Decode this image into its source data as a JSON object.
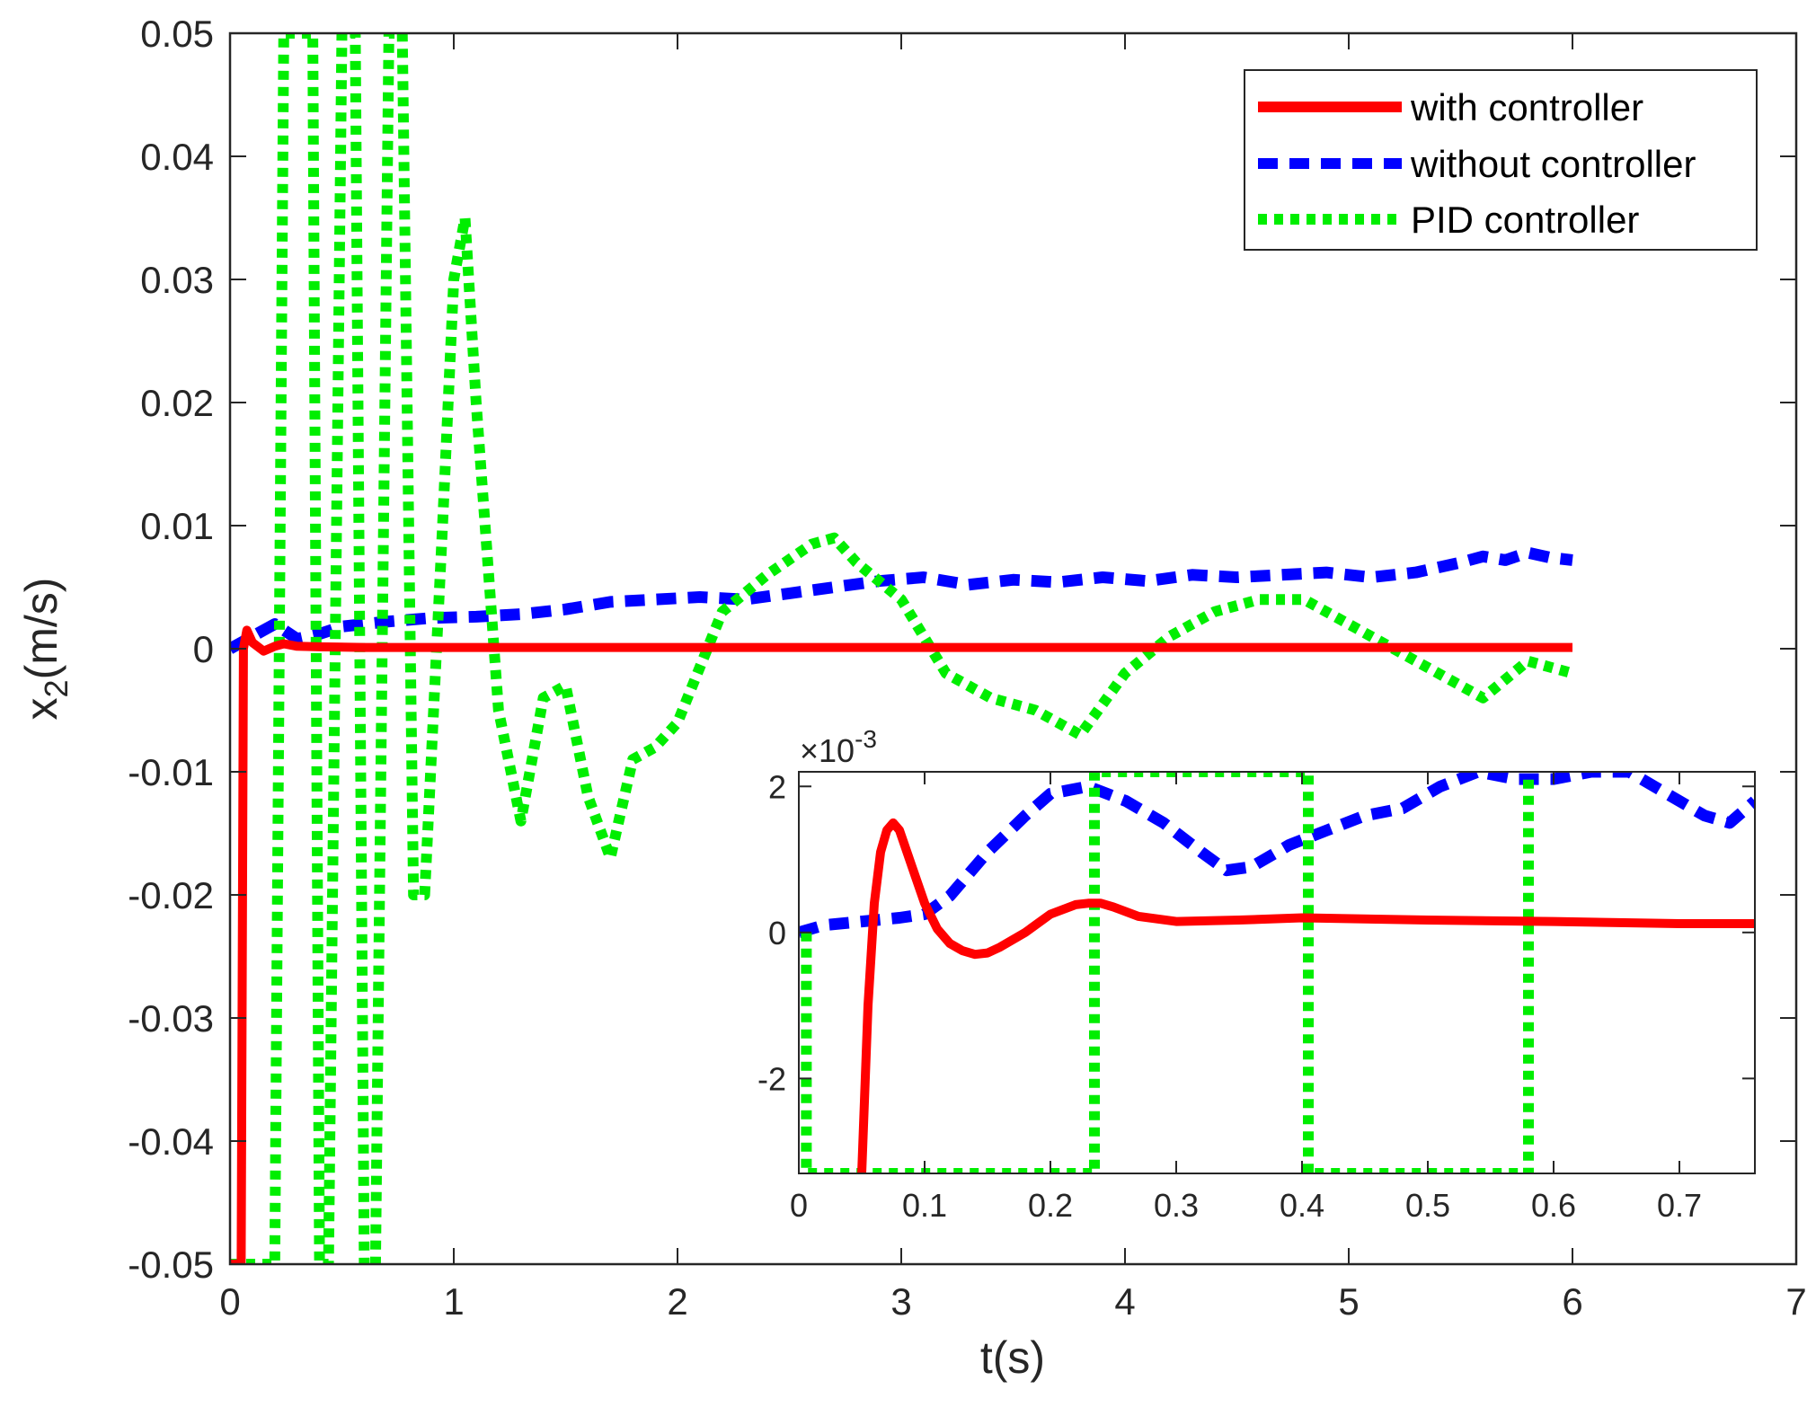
{
  "chart_data": [
    {
      "type": "line",
      "id": "main",
      "xlabel": "t(s)",
      "ylabel_base": "x",
      "ylabel_sub": "2",
      "ylabel_unit": "(m/s)",
      "xlim": [
        0,
        7
      ],
      "ylim": [
        -0.05,
        0.05
      ],
      "xticks": [
        0,
        1,
        2,
        3,
        4,
        5,
        6,
        7
      ],
      "xtick_labels": [
        "0",
        "1",
        "2",
        "3",
        "4",
        "5",
        "6",
        "7"
      ],
      "yticks": [
        -0.05,
        -0.04,
        -0.03,
        -0.02,
        -0.01,
        0,
        0.01,
        0.02,
        0.03,
        0.04,
        0.05
      ],
      "ytick_labels": [
        "-0.05",
        "-0.04",
        "-0.03",
        "-0.02",
        "-0.01",
        "0",
        "0.01",
        "0.02",
        "0.03",
        "0.04",
        "0.05"
      ],
      "legend": {
        "placement": "top-right",
        "entries": [
          "with controller",
          "without controller",
          "PID controller"
        ]
      },
      "series": [
        {
          "name": "with controller",
          "color": "#ff0000",
          "style": "solid",
          "x": [
            0,
            0.02,
            0.05,
            0.06,
            0.075,
            0.1,
            0.15,
            0.2,
            0.24,
            0.3,
            0.4,
            0.6,
            1,
            2,
            3,
            4,
            5,
            6
          ],
          "y": [
            -0.05,
            -0.05,
            -0.05,
            0.0,
            0.0015,
            0.0005,
            -0.0002,
            0.0002,
            0.0004,
            0.0002,
            0.00015,
            0.0001,
            0.0001,
            0.0001,
            0.0001,
            0.0001,
            0.0001,
            0.0001
          ]
        },
        {
          "name": "without controller",
          "color": "#0000ff",
          "style": "dash",
          "x": [
            0,
            0.1,
            0.2,
            0.3,
            0.4,
            0.5,
            0.7,
            0.9,
            1.1,
            1.3,
            1.5,
            1.7,
            1.9,
            2.1,
            2.3,
            2.5,
            2.7,
            2.9,
            3.1,
            3.3,
            3.5,
            3.7,
            3.9,
            4.1,
            4.3,
            4.5,
            4.7,
            4.9,
            5.1,
            5.3,
            5.5,
            5.6,
            5.7,
            5.8,
            5.9,
            6.0
          ],
          "y": [
            0.0,
            0.001,
            0.002,
            0.0008,
            0.0012,
            0.0018,
            0.0022,
            0.0025,
            0.0026,
            0.0028,
            0.0032,
            0.0038,
            0.004,
            0.0042,
            0.004,
            0.0045,
            0.005,
            0.0055,
            0.0058,
            0.0052,
            0.0056,
            0.0054,
            0.0058,
            0.0055,
            0.006,
            0.0058,
            0.006,
            0.0062,
            0.0058,
            0.0062,
            0.007,
            0.0075,
            0.0072,
            0.0078,
            0.0074,
            0.0072
          ]
        },
        {
          "name": "PID controller",
          "color": "#00ee00",
          "style": "dot",
          "x": [
            0,
            0.03,
            0.1,
            0.15,
            0.2,
            0.24,
            0.3,
            0.32,
            0.37,
            0.4,
            0.44,
            0.5,
            0.56,
            0.6,
            0.65,
            0.71,
            0.77,
            0.82,
            0.87,
            0.95,
            1.0,
            1.05,
            1.1,
            1.2,
            1.3,
            1.4,
            1.5,
            1.6,
            1.7,
            1.8,
            1.9,
            2.0,
            2.2,
            2.4,
            2.6,
            2.7,
            2.8,
            3.0,
            3.2,
            3.4,
            3.6,
            3.8,
            4.0,
            4.2,
            4.4,
            4.6,
            4.8,
            5.0,
            5.2,
            5.4,
            5.6,
            5.8,
            6.0
          ],
          "y": [
            -0.05,
            -0.05,
            -0.05,
            -0.05,
            -0.05,
            0.05,
            0.05,
            0.05,
            0.05,
            -0.05,
            -0.05,
            0.05,
            0.05,
            -0.05,
            -0.05,
            0.05,
            0.05,
            -0.02,
            -0.02,
            0.01,
            0.03,
            0.035,
            0.02,
            -0.005,
            -0.014,
            -0.004,
            -0.003,
            -0.012,
            -0.017,
            -0.009,
            -0.008,
            -0.006,
            0.003,
            0.006,
            0.0085,
            0.009,
            0.007,
            0.004,
            -0.002,
            -0.004,
            -0.005,
            -0.007,
            -0.002,
            0.001,
            0.003,
            0.004,
            0.004,
            0.002,
            0.0,
            -0.002,
            -0.004,
            -0.001,
            -0.002
          ]
        }
      ]
    },
    {
      "type": "line",
      "id": "inset",
      "title": "",
      "xlabel": "",
      "ylabel": "",
      "exponent_label": "×10",
      "exponent_power": "-3",
      "xlim": [
        0,
        0.76
      ],
      "ylim": [
        -3.3,
        2.2
      ],
      "y_scale": 0.001,
      "xticks": [
        0,
        0.1,
        0.2,
        0.3,
        0.4,
        0.5,
        0.6,
        0.7
      ],
      "xtick_labels": [
        "0",
        "0.1",
        "0.2",
        "0.3",
        "0.4",
        "0.5",
        "0.6",
        "0.7"
      ],
      "yticks": [
        -2,
        0,
        2
      ],
      "ytick_labels": [
        "-2",
        "0",
        "2"
      ],
      "series": [
        {
          "name": "with controller",
          "color": "#ff0000",
          "style": "solid",
          "x": [
            0.05,
            0.055,
            0.06,
            0.065,
            0.07,
            0.075,
            0.08,
            0.09,
            0.1,
            0.11,
            0.12,
            0.13,
            0.14,
            0.15,
            0.16,
            0.18,
            0.2,
            0.22,
            0.23,
            0.24,
            0.25,
            0.27,
            0.3,
            0.35,
            0.4,
            0.5,
            0.6,
            0.7,
            0.76
          ],
          "y": [
            -3.3,
            -1.0,
            0.4,
            1.1,
            1.4,
            1.5,
            1.4,
            0.9,
            0.4,
            0.05,
            -0.15,
            -0.25,
            -0.3,
            -0.28,
            -0.2,
            0.0,
            0.25,
            0.38,
            0.4,
            0.4,
            0.35,
            0.22,
            0.15,
            0.17,
            0.2,
            0.17,
            0.15,
            0.12,
            0.12
          ]
        },
        {
          "name": "without controller",
          "color": "#0000ff",
          "style": "dash",
          "x": [
            0,
            0.02,
            0.05,
            0.08,
            0.1,
            0.12,
            0.15,
            0.18,
            0.2,
            0.23,
            0.26,
            0.29,
            0.32,
            0.34,
            0.36,
            0.39,
            0.42,
            0.45,
            0.48,
            0.51,
            0.54,
            0.57,
            0.6,
            0.63,
            0.66,
            0.69,
            0.72,
            0.74,
            0.76
          ],
          "y": [
            0.0,
            0.1,
            0.15,
            0.2,
            0.25,
            0.5,
            1.1,
            1.6,
            1.9,
            2.0,
            1.8,
            1.5,
            1.1,
            0.85,
            0.9,
            1.2,
            1.4,
            1.6,
            1.7,
            2.0,
            2.2,
            2.1,
            2.1,
            2.2,
            2.2,
            1.9,
            1.6,
            1.5,
            1.8
          ]
        },
        {
          "name": "PID controller",
          "color": "#00ee00",
          "style": "dot",
          "x": [
            0.006,
            0.006,
            0.235,
            0.235,
            0.405,
            0.405,
            0.58,
            0.58
          ],
          "y": [
            0.0,
            -3.3,
            -3.3,
            2.2,
            2.2,
            -3.3,
            -3.3,
            2.2
          ]
        }
      ]
    }
  ]
}
